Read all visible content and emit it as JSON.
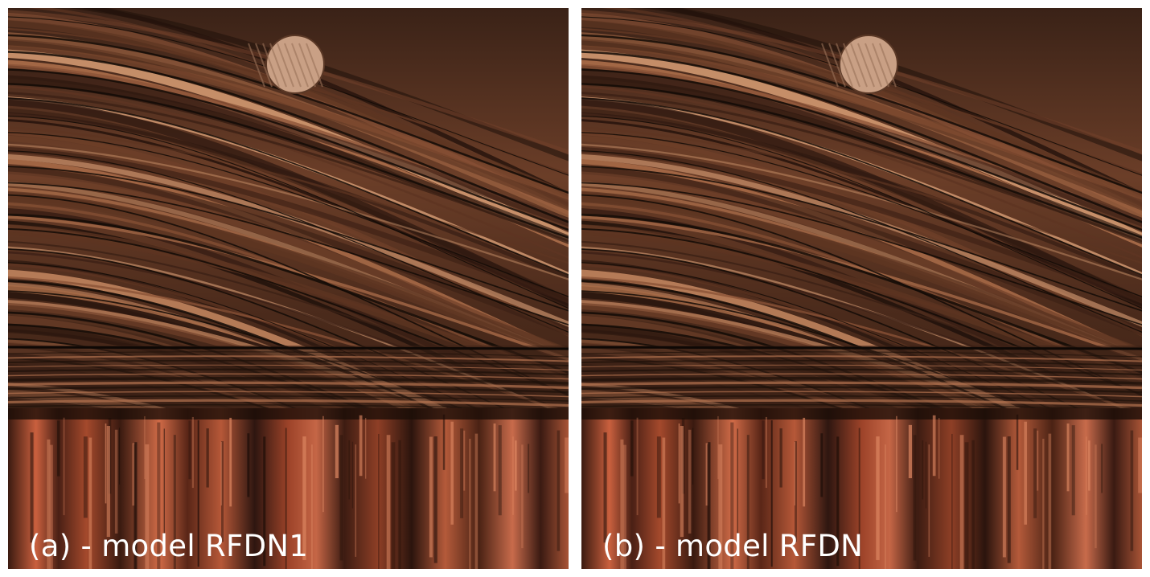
{
  "figure": {
    "panels": [
      {
        "caption": "(a) - model RFDN1",
        "subject": "wood-grain-texture"
      },
      {
        "caption": "(b) - model RFDN",
        "subject": "wood-grain-texture"
      }
    ]
  }
}
